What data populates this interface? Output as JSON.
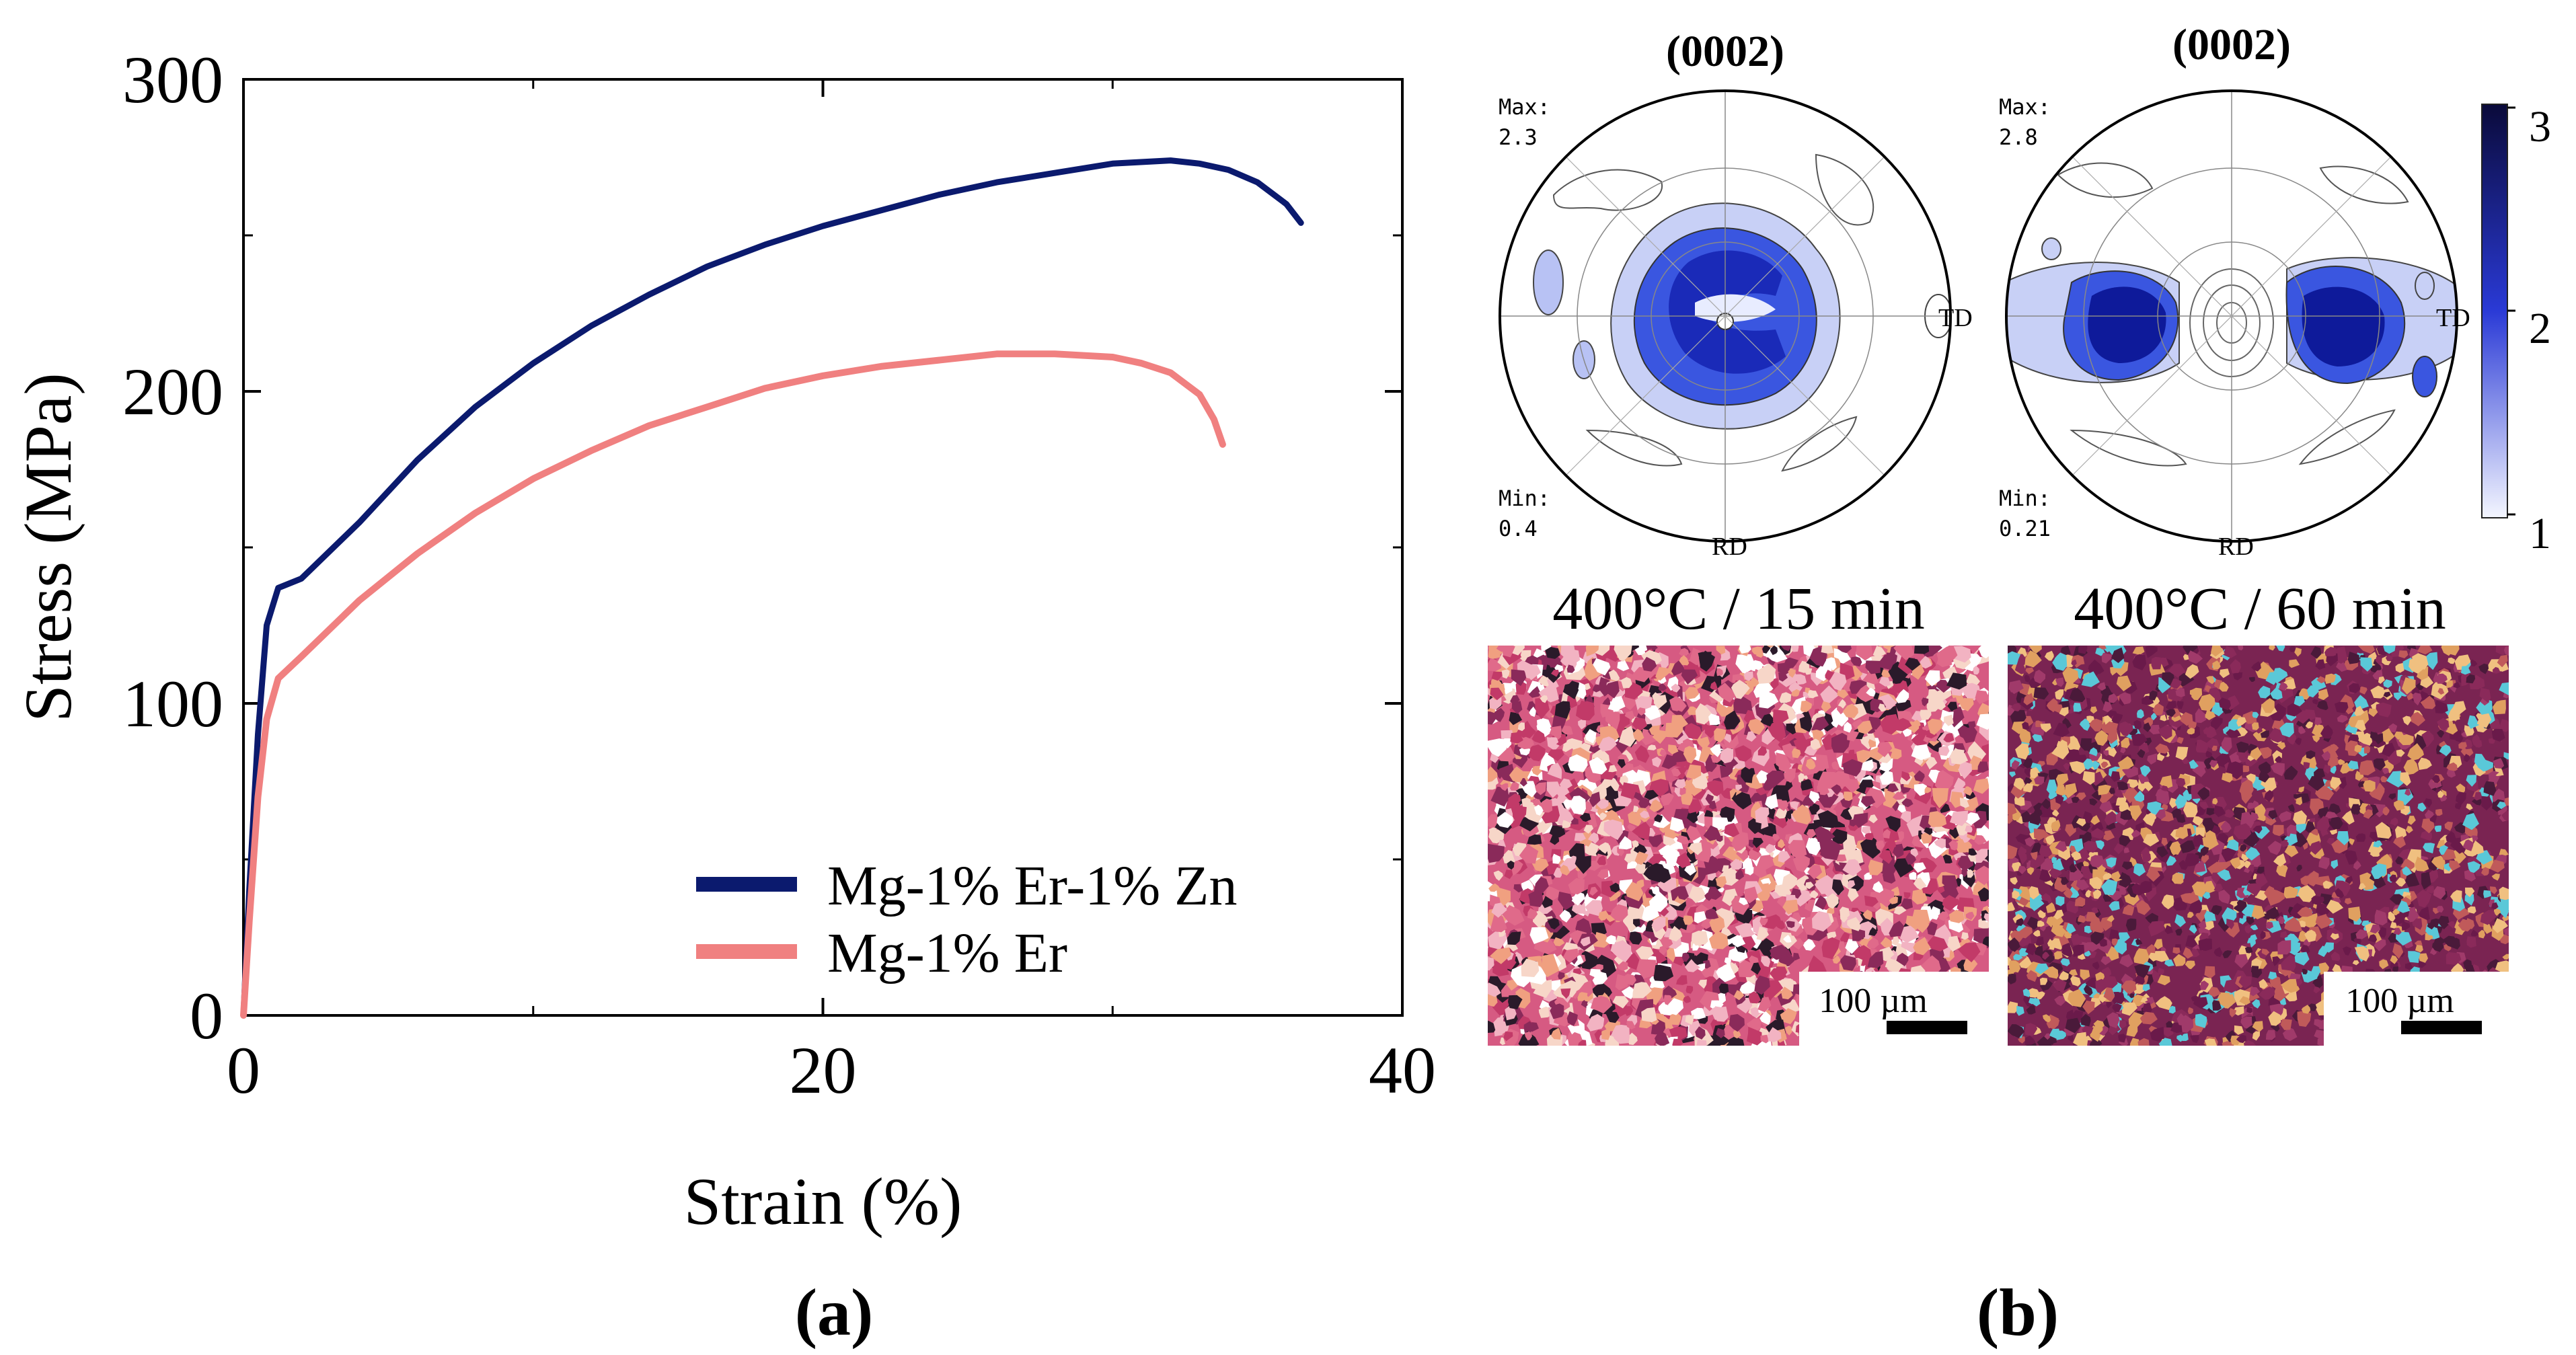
{
  "panel_a": {
    "label": "(a)",
    "legend_placement": "bottom-right",
    "colors": {
      "mg_er_zn": "#0b1a6e",
      "mg_er": "#f08080"
    }
  },
  "panel_b": {
    "label": "(b)",
    "pole_figures": [
      {
        "title": "(0002)",
        "max_label": "Max:",
        "max_value": "2.3",
        "min_label": "Min:",
        "min_value": "0.4",
        "td_label": "TD",
        "rd_label": "RD"
      },
      {
        "title": "(0002)",
        "max_label": "Max:",
        "max_value": "2.8",
        "min_label": "Min:",
        "min_value": "0.21",
        "td_label": "TD",
        "rd_label": "RD"
      }
    ],
    "colorbar": {
      "ticks": [
        "3",
        "2",
        "1"
      ],
      "colors": [
        "#0a0a3a",
        "#2a3ad6",
        "#f4f6ff"
      ]
    },
    "micrographs": [
      {
        "caption": "400°C / 15 min",
        "scale_label": "100 µm",
        "palette": [
          "#e06a8a",
          "#f2b3c2",
          "#c23a68",
          "#f7d6c8",
          "#8a2a5a",
          "#2a1a2a",
          "#f0a080",
          "#ffffff"
        ]
      },
      {
        "caption": "400°C / 60 min",
        "scale_label": "100 µm",
        "palette": [
          "#8a2a5a",
          "#6a1a4a",
          "#a03a6a",
          "#5ac8d8",
          "#e0a060",
          "#c05a5a",
          "#4a1a3a",
          "#f0c080"
        ]
      }
    ]
  },
  "chart_data": {
    "type": "line",
    "title": "",
    "xlabel": "Strain (%)",
    "ylabel": "Stress (MPa)",
    "xlim": [
      0,
      40
    ],
    "ylim": [
      0,
      300
    ],
    "xticks": [
      0,
      20,
      40
    ],
    "yticks": [
      0,
      100,
      200,
      300
    ],
    "grid": false,
    "series": [
      {
        "name": "Mg-1% Er-1% Zn",
        "x": [
          0,
          0.2,
          0.5,
          0.8,
          1.2,
          2,
          4,
          6,
          8,
          10,
          12,
          14,
          16,
          18,
          20,
          22,
          24,
          26,
          28,
          30,
          32,
          33,
          34,
          35,
          36,
          36.5
        ],
        "y": [
          0,
          40,
          90,
          125,
          137,
          140,
          158,
          178,
          195,
          209,
          221,
          231,
          240,
          247,
          253,
          258,
          263,
          267,
          270,
          273,
          274,
          273,
          271,
          267,
          260,
          254
        ]
      },
      {
        "name": "Mg-1% Er",
        "x": [
          0,
          0.2,
          0.5,
          0.8,
          1.2,
          2,
          4,
          6,
          8,
          10,
          12,
          14,
          16,
          18,
          20,
          22,
          24,
          26,
          28,
          30,
          31,
          32,
          33,
          33.5,
          33.8
        ],
        "y": [
          0,
          30,
          70,
          95,
          108,
          115,
          133,
          148,
          161,
          172,
          181,
          189,
          195,
          201,
          205,
          208,
          210,
          212,
          212,
          211,
          209,
          206,
          199,
          191,
          183
        ]
      }
    ]
  }
}
